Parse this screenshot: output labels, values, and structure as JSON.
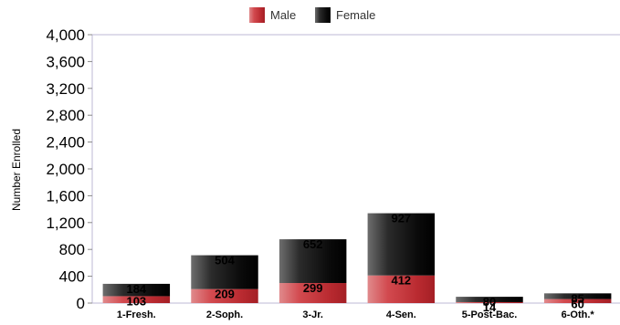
{
  "chart_data": {
    "type": "bar",
    "stacked": true,
    "title": "",
    "xlabel": "",
    "ylabel": "Number Enrolled",
    "ylim": [
      0,
      4000
    ],
    "yticks": [
      "0",
      "400",
      "800",
      "1,200",
      "1,600",
      "2,000",
      "2,400",
      "2,800",
      "3,200",
      "3,600",
      "4,000"
    ],
    "ytick_values": [
      0,
      400,
      800,
      1200,
      1600,
      2000,
      2400,
      2800,
      3200,
      3600,
      4000
    ],
    "categories": [
      "1-Fresh.",
      "2-Soph.",
      "3-Jr.",
      "4-Sen.",
      "5-Post-Bac.",
      "6-Oth.*"
    ],
    "series": [
      {
        "name": "Male",
        "values": [
          103,
          209,
          299,
          412,
          14,
          60
        ],
        "labels": [
          "103",
          "209",
          "299",
          "412",
          "14",
          "60"
        ],
        "color": "#c8393e"
      },
      {
        "name": "Female",
        "values": [
          184,
          504,
          652,
          927,
          80,
          85
        ],
        "labels": [
          "184",
          "504",
          "652",
          "927",
          "80",
          "85"
        ],
        "color": "#111111"
      }
    ],
    "legend_position": "top-center",
    "grid": false
  }
}
